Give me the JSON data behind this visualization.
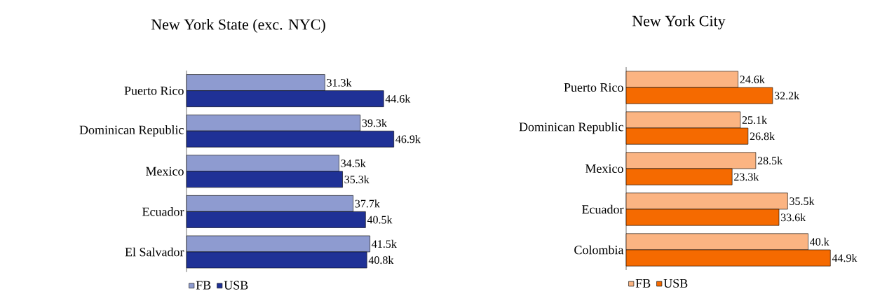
{
  "chart_data": [
    {
      "type": "bar",
      "orientation": "horizontal",
      "title": "New York State (exc. NYC)",
      "categories": [
        "Puerto Rico",
        "Dominican Republic",
        "Mexico",
        "Ecuador",
        "El Salvador"
      ],
      "legend": "bottom",
      "series": [
        {
          "name": "FB",
          "color": "#8e9bd0",
          "values": [
            31.3,
            39.3,
            34.5,
            37.7,
            41.5
          ],
          "value_labels": [
            "31.3k",
            "39.3k",
            "34.5k",
            "37.7k",
            "41.5k"
          ]
        },
        {
          "name": "USB",
          "color": "#1f3196",
          "values": [
            44.6,
            46.9,
            35.3,
            40.5,
            40.8
          ],
          "value_labels": [
            "44.6k",
            "46.9k",
            "35.3k",
            "40.5k",
            "40.8k"
          ]
        }
      ]
    },
    {
      "type": "bar",
      "orientation": "horizontal",
      "title": "New York City",
      "categories": [
        "Puerto Rico",
        "Dominican Republic",
        "Mexico",
        "Ecuador",
        "Colombia"
      ],
      "legend": "bottom",
      "series": [
        {
          "name": "FB",
          "color": "#fbb482",
          "values": [
            24.6,
            25.1,
            28.5,
            35.5,
            40.0
          ],
          "value_labels": [
            "24.6k",
            "25.1k",
            "28.5k",
            "35.5k",
            "40.k"
          ]
        },
        {
          "name": "USB",
          "color": "#f56a00",
          "values": [
            32.2,
            26.8,
            23.3,
            33.6,
            44.9
          ],
          "value_labels": [
            "32.2k",
            "26.8k",
            "23.3k",
            "33.6k",
            "44.9k"
          ]
        }
      ]
    }
  ]
}
